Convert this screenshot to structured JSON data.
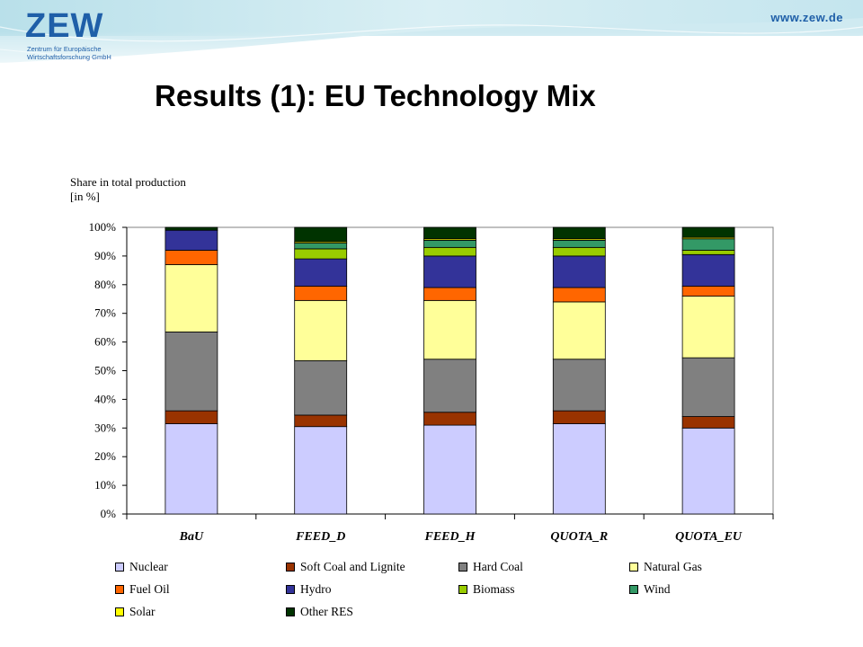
{
  "header": {
    "logo": "ZEW",
    "logo_subtitle": "Zentrum für Europäische Wirtschaftsforschung GmbH",
    "url": "www.zew.de",
    "brand_color": "#1f5fa8"
  },
  "slide": {
    "title": "Results (1): EU Technology Mix"
  },
  "chart_data": {
    "type": "bar",
    "stacked": true,
    "ylabel": "Share in total production\n[in %]",
    "ylim": [
      0,
      100
    ],
    "y_ticks": [
      "0%",
      "10%",
      "20%",
      "30%",
      "40%",
      "50%",
      "60%",
      "70%",
      "80%",
      "90%",
      "100%"
    ],
    "categories": [
      "BaU",
      "FEED_D",
      "FEED_H",
      "QUOTA_R",
      "QUOTA_EU"
    ],
    "grid": false,
    "legend_position": "bottom",
    "series": [
      {
        "name": "Nuclear",
        "color": "#ccccff",
        "values": [
          31.5,
          30.5,
          31,
          31.5,
          30
        ]
      },
      {
        "name": "Soft Coal and Lignite",
        "color": "#993300",
        "values": [
          4.5,
          4,
          4.5,
          4.5,
          4
        ]
      },
      {
        "name": "Hard Coal",
        "color": "#808080",
        "values": [
          27.5,
          19,
          18.5,
          18,
          20.5
        ]
      },
      {
        "name": "Natural Gas",
        "color": "#ffff99",
        "values": [
          23.5,
          21,
          20.5,
          20,
          21.5
        ]
      },
      {
        "name": "Fuel Oil",
        "color": "#ff6600",
        "values": [
          5,
          5,
          4.5,
          5,
          3.5
        ]
      },
      {
        "name": "Hydro",
        "color": "#333399",
        "values": [
          7,
          9.5,
          11,
          11,
          11
        ]
      },
      {
        "name": "Biomass",
        "color": "#99cc00",
        "values": [
          0,
          3.5,
          3,
          3,
          1.5
        ]
      },
      {
        "name": "Wind",
        "color": "#339966",
        "values": [
          0,
          2,
          2.5,
          2.5,
          4
        ]
      },
      {
        "name": "Solar",
        "color": "#ffff00",
        "values": [
          0,
          0.5,
          0.5,
          0.5,
          0.5
        ]
      },
      {
        "name": "Other RES",
        "color": "#003300",
        "values": [
          1,
          5,
          4,
          4,
          3.5
        ]
      }
    ]
  }
}
